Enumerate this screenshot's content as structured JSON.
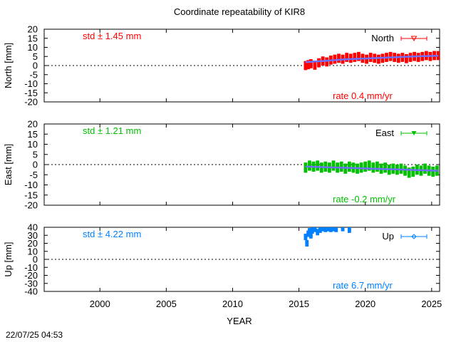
{
  "chart_data": {
    "type": "scatter",
    "title": "Coordinate repeatability of KIR8",
    "xlabel": "YEAR",
    "timestamp": "22/07/25 04:53",
    "xlim": [
      1995.8,
      2025.6
    ],
    "xticks": [
      2000,
      2005,
      2010,
      2015,
      2020,
      2025
    ],
    "xtick_labels": [
      "2000",
      "2005",
      "2010",
      "2015",
      "2020",
      "2025"
    ],
    "panels": [
      {
        "key": "north",
        "ylabel": "North [mm]",
        "legend": "North",
        "std_text": "std ± 1.45 mm",
        "rate_text": "rate  0.4 mm/yr",
        "color": "#ff0000",
        "trend_color": "#6f6fff",
        "ylim": [
          -20,
          20
        ],
        "yticks": [
          -20,
          -15,
          -10,
          -5,
          0,
          5,
          10,
          15,
          20
        ],
        "ytick_labels": [
          "-20",
          "-15",
          "-10",
          "-5",
          "0",
          "5",
          "10",
          "15",
          "20"
        ],
        "trend": [
          [
            2015.5,
            1.9
          ],
          [
            2017.0,
            2.6
          ],
          [
            2018.5,
            3.4
          ],
          [
            2020.0,
            3.9
          ],
          [
            2022.0,
            4.5
          ],
          [
            2024.0,
            5.1
          ],
          [
            2025.5,
            5.4
          ]
        ],
        "series": [
          [
            2015.5,
            0.0
          ],
          [
            2015.7,
            0.5
          ],
          [
            2015.9,
            1.0
          ],
          [
            2016.2,
            0.2
          ],
          [
            2016.5,
            1.5
          ],
          [
            2016.8,
            2.5
          ],
          [
            2017.1,
            2.0
          ],
          [
            2017.4,
            3.0
          ],
          [
            2017.7,
            3.5
          ],
          [
            2018.0,
            4.0
          ],
          [
            2018.3,
            3.5
          ],
          [
            2018.6,
            4.5
          ],
          [
            2018.9,
            4.0
          ],
          [
            2019.2,
            4.5
          ],
          [
            2019.5,
            5.0
          ],
          [
            2019.8,
            4.0
          ],
          [
            2020.1,
            3.5
          ],
          [
            2020.4,
            4.5
          ],
          [
            2020.7,
            4.0
          ],
          [
            2021.0,
            3.5
          ],
          [
            2021.3,
            4.0
          ],
          [
            2021.6,
            4.5
          ],
          [
            2021.9,
            5.0
          ],
          [
            2022.2,
            4.5
          ],
          [
            2022.5,
            4.0
          ],
          [
            2022.8,
            4.5
          ],
          [
            2023.1,
            3.8
          ],
          [
            2023.4,
            4.5
          ],
          [
            2023.7,
            5.0
          ],
          [
            2024.0,
            4.5
          ],
          [
            2024.3,
            5.0
          ],
          [
            2024.6,
            5.5
          ],
          [
            2024.9,
            5.0
          ],
          [
            2025.2,
            5.5
          ],
          [
            2025.5,
            5.5
          ]
        ],
        "err": 2.5
      },
      {
        "key": "east",
        "ylabel": "East [mm]",
        "legend": "East",
        "std_text": "std ± 1.21 mm",
        "rate_text": "rate -0.2 mm/yr",
        "color": "#00c000",
        "trend_color": "#6f6fff",
        "ylim": [
          -20,
          20
        ],
        "yticks": [
          -20,
          -15,
          -10,
          -5,
          0,
          5,
          10,
          15,
          20
        ],
        "ytick_labels": [
          "-20",
          "-15",
          "-10",
          "-5",
          "0",
          "5",
          "10",
          "15",
          "20"
        ],
        "trend": [
          [
            2015.5,
            -1.0
          ],
          [
            2018.0,
            -1.5
          ],
          [
            2020.5,
            -2.0
          ],
          [
            2023.0,
            -2.5
          ],
          [
            2025.5,
            -3.0
          ]
        ],
        "series": [
          [
            2015.5,
            -1.5
          ],
          [
            2015.8,
            -0.5
          ],
          [
            2016.1,
            -1.0
          ],
          [
            2016.4,
            -0.5
          ],
          [
            2016.7,
            -1.5
          ],
          [
            2017.0,
            -1.0
          ],
          [
            2017.3,
            -1.5
          ],
          [
            2017.6,
            -0.5
          ],
          [
            2017.9,
            -1.5
          ],
          [
            2018.2,
            -1.0
          ],
          [
            2018.5,
            -2.0
          ],
          [
            2018.8,
            -1.0
          ],
          [
            2019.1,
            -1.5
          ],
          [
            2019.4,
            -2.0
          ],
          [
            2019.7,
            -1.5
          ],
          [
            2020.0,
            -1.0
          ],
          [
            2020.3,
            -0.5
          ],
          [
            2020.6,
            -1.5
          ],
          [
            2020.9,
            -1.0
          ],
          [
            2021.2,
            -2.0
          ],
          [
            2021.5,
            -1.5
          ],
          [
            2021.8,
            -2.5
          ],
          [
            2022.1,
            -2.0
          ],
          [
            2022.4,
            -2.5
          ],
          [
            2022.7,
            -2.0
          ],
          [
            2023.0,
            -3.0
          ],
          [
            2023.3,
            -4.0
          ],
          [
            2023.6,
            -3.5
          ],
          [
            2023.9,
            -2.5
          ],
          [
            2024.2,
            -3.0
          ],
          [
            2024.5,
            -2.0
          ],
          [
            2024.8,
            -3.0
          ],
          [
            2025.1,
            -3.5
          ],
          [
            2025.4,
            -3.0
          ]
        ],
        "err": 2.5
      },
      {
        "key": "up",
        "ylabel": "Up [mm]",
        "legend": "Up",
        "std_text": "std ± 4.22 mm",
        "rate_text": "rate  6.7 mm/yr",
        "color": "#0080ff",
        "trend_color": "#6f6fff",
        "ylim": [
          -40,
          40
        ],
        "yticks": [
          -40,
          -30,
          -20,
          -10,
          0,
          10,
          20,
          30,
          40
        ],
        "ytick_labels": [
          "-40",
          "-30",
          "-20",
          "-10",
          "0",
          "10",
          "20",
          "30",
          "40"
        ],
        "trend": [],
        "series": [
          [
            2015.5,
            28
          ],
          [
            2015.6,
            20
          ],
          [
            2015.7,
            32
          ],
          [
            2015.8,
            35
          ],
          [
            2015.9,
            30
          ],
          [
            2016.0,
            36
          ],
          [
            2016.2,
            38
          ],
          [
            2016.4,
            34
          ],
          [
            2016.6,
            37
          ],
          [
            2016.8,
            39
          ],
          [
            2017.0,
            38
          ],
          [
            2017.2,
            39
          ],
          [
            2017.4,
            38
          ],
          [
            2017.6,
            39
          ],
          [
            2017.8,
            38
          ],
          [
            2018.3,
            39
          ],
          [
            2018.8,
            37
          ]
        ],
        "err": 4
      }
    ]
  }
}
